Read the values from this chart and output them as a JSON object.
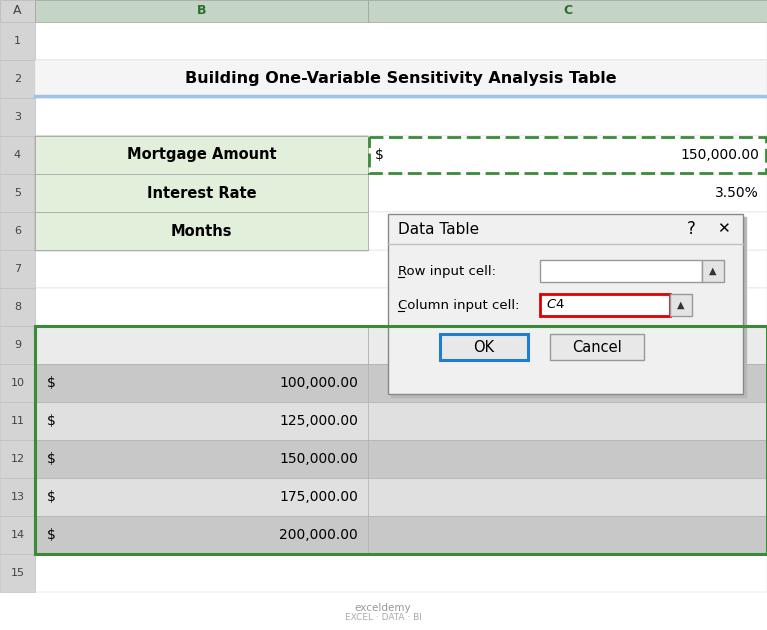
{
  "title": "Building One-Variable Sensitivity Analysis Table",
  "bg_color": "#ffffff",
  "green_cell_bg": "#e2efda",
  "dashed_border_color": "#3a8a3a",
  "table_border_color": "#3a8a3a",
  "dialog": {
    "title": "Data Table",
    "row_input_label": "Row input cell:",
    "col_input_label": "Column input cell:",
    "col_input_value": "$C$4",
    "ok_label": "OK",
    "cancel_label": "Cancel"
  },
  "data_rows": [
    {
      "row": 10,
      "dollar": "$",
      "amount": "100,000.00"
    },
    {
      "row": 11,
      "dollar": "$",
      "amount": "125,000.00"
    },
    {
      "row": 12,
      "dollar": "$",
      "amount": "150,000.00"
    },
    {
      "row": 13,
      "dollar": "$",
      "amount": "175,000.00"
    },
    {
      "row": 14,
      "dollar": "$",
      "amount": "200,000.00"
    }
  ],
  "row_numbers": [
    1,
    2,
    3,
    4,
    5,
    6,
    7,
    8,
    9,
    10,
    11,
    12,
    13,
    14,
    15
  ],
  "header_gray": "#d4d4d4",
  "col_b_selected_header": "#c5d5c5",
  "col_c_selected_header": "#c5d5c5",
  "title_row_bg": "#f5f5f5",
  "blue_underline": "#9dc3e6",
  "row_alt1": "#c8c8c8",
  "row_alt2": "#e0e0e0",
  "row9_bg": "#ebebeb",
  "dialog_bg": "#f0f0f0",
  "dialog_shadow": "#b8b8b8"
}
